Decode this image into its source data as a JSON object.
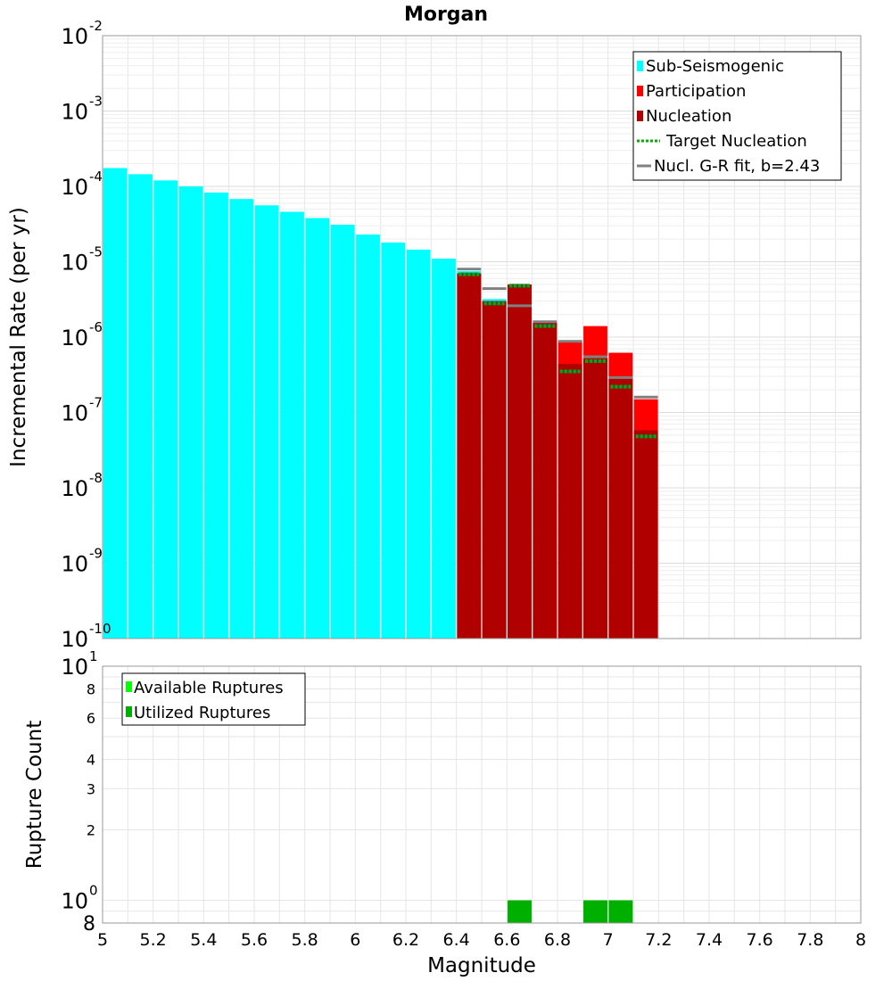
{
  "chart_data": {
    "type": "bar",
    "title": "Morgan",
    "xlabel": "Magnitude",
    "xlim": [
      5,
      8
    ],
    "x_ticks": [
      "5",
      "5.2",
      "5.4",
      "5.6",
      "5.8",
      "6",
      "6.2",
      "6.4",
      "6.6",
      "6.8",
      "7",
      "7.2",
      "7.4",
      "7.6",
      "7.8",
      "8"
    ],
    "bin_width": 0.1,
    "top": {
      "ylabel": "Incremental Rate (per yr)",
      "yscale": "log",
      "ylim": [
        1e-10,
        0.01
      ],
      "y_ticks": [
        {
          "value": 1e-10,
          "base": "10",
          "exp": "-10"
        },
        {
          "value": 1e-09,
          "base": "10",
          "exp": "-9"
        },
        {
          "value": 1e-08,
          "base": "10",
          "exp": "-8"
        },
        {
          "value": 1e-07,
          "base": "10",
          "exp": "-7"
        },
        {
          "value": 1e-06,
          "base": "10",
          "exp": "-6"
        },
        {
          "value": 1e-05,
          "base": "10",
          "exp": "-5"
        },
        {
          "value": 0.0001,
          "base": "10",
          "exp": "-4"
        },
        {
          "value": 0.001,
          "base": "10",
          "exp": "-3"
        },
        {
          "value": 0.01,
          "base": "10",
          "exp": "-2"
        }
      ],
      "legend": {
        "position": "top-right",
        "entries": [
          {
            "label": "Sub-Seismogenic",
            "color": "#00ffff",
            "kind": "bar"
          },
          {
            "label": "Participation",
            "color": "#ff0000",
            "kind": "bar"
          },
          {
            "label": "Nucleation",
            "color": "#b00000",
            "kind": "bar"
          },
          {
            "label": "Target Nucleation",
            "color": "#00b000",
            "kind": "dotted"
          },
          {
            "label": "Nucl. G-R fit, b=2.43",
            "color": "#808080",
            "kind": "line"
          }
        ]
      },
      "series": [
        {
          "name": "Sub-Seismogenic",
          "color": "#00ffff",
          "x": [
            5.05,
            5.15,
            5.25,
            5.35,
            5.45,
            5.55,
            5.65,
            5.75,
            5.85,
            5.95,
            6.05,
            6.15,
            6.25,
            6.35,
            6.45,
            6.55
          ],
          "values": [
            0.000175,
            0.000145,
            0.00012,
            0.0001,
            8.3e-05,
            6.8e-05,
            5.6e-05,
            4.6e-05,
            3.8e-05,
            3.1e-05,
            2.3e-05,
            1.8e-05,
            1.45e-05,
            1.1e-05,
            7.5e-06,
            3.2e-06
          ]
        },
        {
          "name": "Participation",
          "color": "#ff0000",
          "x": [
            6.45,
            6.55,
            6.65,
            6.75,
            6.85,
            6.95,
            7.05,
            7.15
          ],
          "values": [
            7e-06,
            3e-06,
            5e-06,
            1.6e-06,
            9e-07,
            1.4e-06,
            6.2e-07,
            1.5e-07
          ]
        },
        {
          "name": "Nucleation",
          "color": "#b00000",
          "x": [
            6.45,
            6.55,
            6.65,
            6.75,
            6.85,
            6.95,
            7.05,
            7.15
          ],
          "values": [
            7e-06,
            3e-06,
            5e-06,
            1.55e-06,
            4.4e-07,
            5.2e-07,
            2.9e-07,
            5.8e-08
          ]
        },
        {
          "name": "Target Nucleation",
          "color": "#00b000",
          "x": [
            6.45,
            6.55,
            6.65,
            6.75,
            6.85,
            6.95,
            7.05,
            7.15
          ],
          "values": [
            6.8e-06,
            2.8e-06,
            4.8e-06,
            1.4e-06,
            3.5e-07,
            4.8e-07,
            2.2e-07,
            4.8e-08
          ]
        },
        {
          "name": "Nucl. G-R fit, b=2.43",
          "color": "#808080",
          "x": [
            6.45,
            6.55,
            6.65,
            6.75,
            6.85,
            6.95,
            7.05,
            7.15
          ],
          "values": [
            8e-06,
            4.4e-06,
            2.6e-06,
            1.6e-06,
            8.8e-07,
            5.5e-07,
            2.9e-07,
            1.6e-07
          ]
        }
      ]
    },
    "bottom": {
      "ylabel": "Rupture Count",
      "yscale": "log",
      "ylim": [
        0.8,
        10
      ],
      "y_ticks_major": [
        {
          "value": 1,
          "base": "10",
          "exp": "0"
        },
        {
          "value": 10,
          "base": "10",
          "exp": "1"
        }
      ],
      "y_ticks_minor": [
        {
          "value": 0.8,
          "label": "8"
        },
        {
          "value": 2,
          "label": "2"
        },
        {
          "value": 3,
          "label": "3"
        },
        {
          "value": 4,
          "label": "4"
        },
        {
          "value": 6,
          "label": "6"
        },
        {
          "value": 8,
          "label": "8"
        }
      ],
      "legend": {
        "position": "top-left",
        "entries": [
          {
            "label": "Available Ruptures",
            "color": "#00ff00",
            "kind": "bar"
          },
          {
            "label": "Utilized Ruptures",
            "color": "#00b000",
            "kind": "bar"
          }
        ]
      },
      "series": [
        {
          "name": "Available Ruptures",
          "color": "#00ff00",
          "x": [
            6.65,
            6.95,
            7.05
          ],
          "values": [
            1,
            1,
            1
          ]
        },
        {
          "name": "Utilized Ruptures",
          "color": "#00b000",
          "x": [
            6.65,
            6.95,
            7.05
          ],
          "values": [
            1,
            1,
            1
          ]
        }
      ]
    }
  }
}
